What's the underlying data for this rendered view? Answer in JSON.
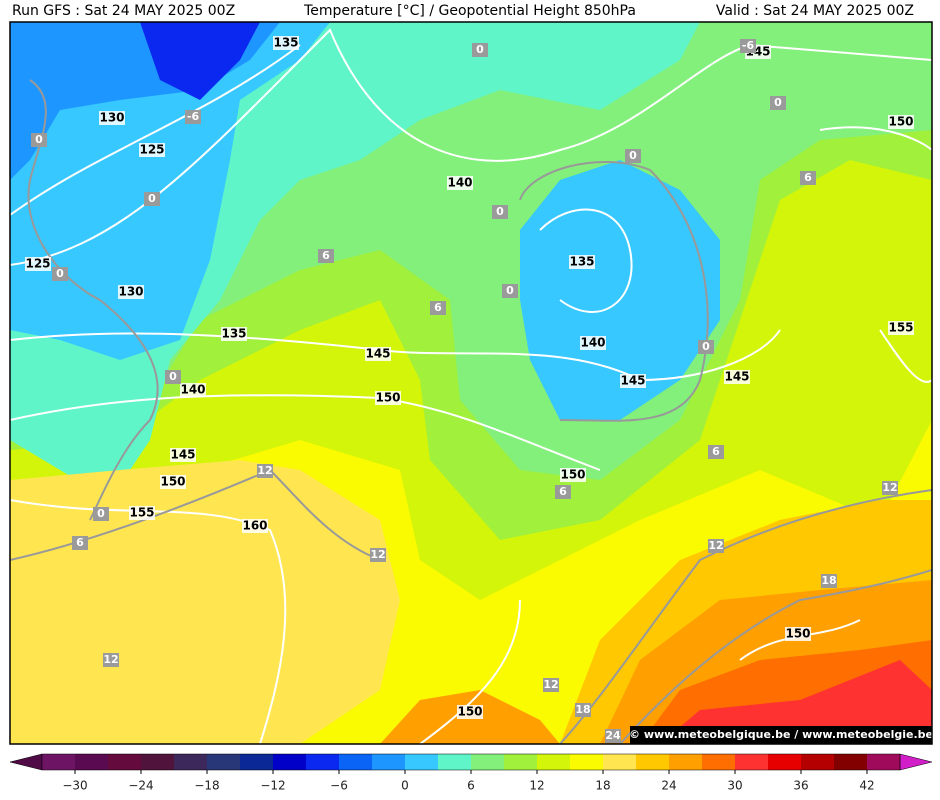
{
  "header": {
    "left": "Run GFS : Sat 24 MAY 2025 00Z",
    "center": "Temperature [°C] / Geopotential Height 850hPa",
    "right": "Valid : Sat 24 MAY 2025 00Z"
  },
  "map_labels": {
    "height": [
      135,
      145,
      130,
      125,
      140,
      135,
      125,
      130,
      135,
      140,
      145,
      145,
      145,
      140,
      150,
      145,
      150,
      150,
      155,
      160,
      155,
      150,
      150,
      150
    ],
    "temperature": [
      0,
      -6,
      -6,
      0,
      0,
      0,
      6,
      0,
      0,
      6,
      0,
      0,
      6,
      0,
      0,
      6,
      12,
      6,
      12,
      0,
      6,
      12,
      12,
      18,
      12,
      12,
      18,
      24
    ]
  },
  "credit": "© www.meteobelgique.be / www.meteobelgie.be",
  "colorbar": {
    "lim": [
      -33,
      45
    ],
    "colors": [
      "#6e1464",
      "#5a0a50",
      "#640a3c",
      "#50143c",
      "#3c285a",
      "#283778",
      "#0a2896",
      "#0000c8",
      "#0a28f0",
      "#0a64f5",
      "#1e96ff",
      "#37c8ff",
      "#5ff5c8",
      "#82f07a",
      "#a0f03c",
      "#d2f50a",
      "#fafa00",
      "#ffe650",
      "#ffc800",
      "#ffa000",
      "#ff6e00",
      "#ff3232",
      "#e60000",
      "#b40000",
      "#820000",
      "#a00a5a"
    ],
    "under_color": "#500a46",
    "over_color": "#d21ec8",
    "ticks": [
      {
        "value": -30,
        "label": "−30"
      },
      {
        "value": -24,
        "label": "−24"
      },
      {
        "value": -18,
        "label": "−18"
      },
      {
        "value": -12,
        "label": "−12"
      },
      {
        "value": -6,
        "label": "−6"
      },
      0,
      6,
      12,
      18,
      24,
      30,
      36,
      42
    ]
  }
}
